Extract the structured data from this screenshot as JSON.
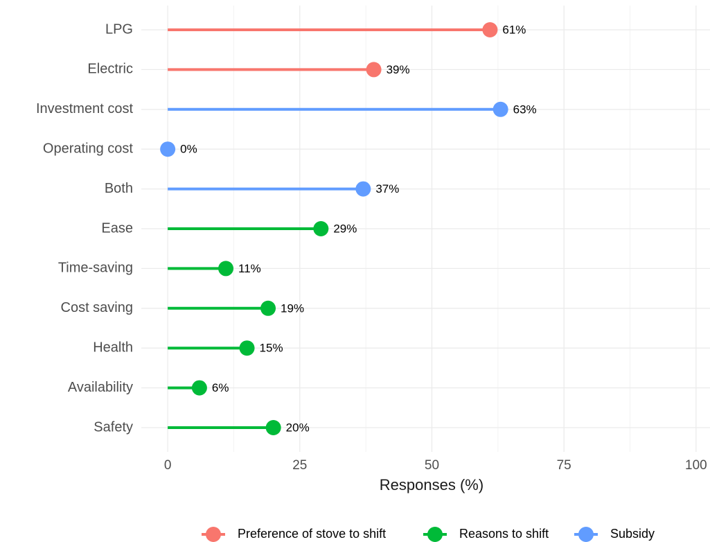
{
  "chart_data": {
    "type": "lollipop",
    "categories": [
      "LPG",
      "Electric",
      "Investment cost",
      "Operating cost",
      "Both",
      "Ease",
      "Time-saving",
      "Cost saving",
      "Health",
      "Availability",
      "Safety"
    ],
    "series": [
      {
        "name": "Preference of stove to shift",
        "color": "#F8766D",
        "values": [
          61,
          39,
          null,
          null,
          null,
          null,
          null,
          null,
          null,
          null,
          null
        ],
        "value_labels": [
          "61%",
          "39%",
          null,
          null,
          null,
          null,
          null,
          null,
          null,
          null,
          null
        ]
      },
      {
        "name": "Reasons to shift",
        "color": "#00BA38",
        "values": [
          null,
          null,
          null,
          null,
          null,
          29,
          11,
          19,
          15,
          6,
          20
        ],
        "value_labels": [
          null,
          null,
          null,
          null,
          null,
          "29%",
          "11%",
          "19%",
          "15%",
          "6%",
          "20%"
        ]
      },
      {
        "name": "Subsidy",
        "color": "#619CFF",
        "values": [
          null,
          null,
          63,
          0,
          37,
          null,
          null,
          null,
          null,
          null,
          null
        ],
        "value_labels": [
          null,
          null,
          "63%",
          "0%",
          "37%",
          null,
          null,
          null,
          null,
          null,
          null
        ]
      }
    ],
    "x_label": "Responses (%)",
    "xlim": [
      -5,
      105
    ],
    "xticks": [
      0,
      25,
      50,
      75,
      100
    ],
    "grid": true,
    "legend": "bottom"
  }
}
